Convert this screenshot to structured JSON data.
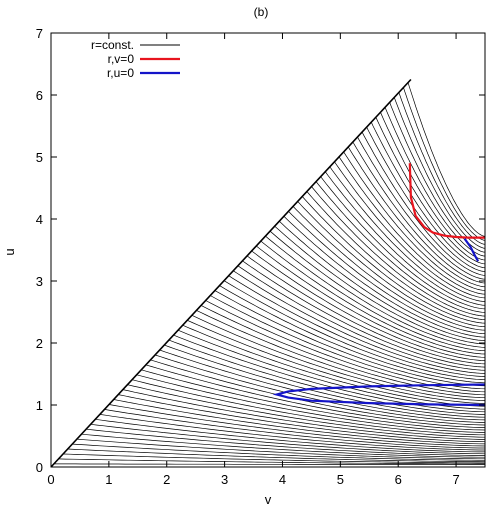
{
  "chart_data": {
    "type": "line",
    "title": "(b)",
    "xlabel": "v",
    "ylabel": "u",
    "xlim": [
      0,
      7.5
    ],
    "ylim": [
      0,
      7
    ],
    "xticks": [
      "0",
      "1",
      "2",
      "3",
      "4",
      "5",
      "6",
      "7"
    ],
    "yticks": [
      "0",
      "1",
      "2",
      "3",
      "4",
      "5",
      "6",
      "7"
    ],
    "grid": false,
    "legend_position": "top-left",
    "legend": [
      {
        "label": "r=const.",
        "color": "#000000"
      },
      {
        "label": "r,v=0",
        "color": "#e8141e"
      },
      {
        "label": "r,u=0",
        "color": "#1414c8"
      }
    ],
    "boundary": {
      "x": [
        0,
        6.22
      ],
      "y": [
        0,
        6.25
      ]
    },
    "apparent_horizon_v": {
      "x": [
        6.2,
        6.22,
        6.3,
        6.45,
        6.6,
        6.8,
        7.0,
        7.2,
        7.5
      ],
      "y": [
        4.9,
        4.35,
        4.05,
        3.87,
        3.78,
        3.73,
        3.71,
        3.7,
        3.7
      ]
    },
    "apparent_horizon_u_upper": {
      "x": [
        7.15,
        7.25,
        7.32,
        7.38
      ],
      "y": [
        3.68,
        3.55,
        3.42,
        3.32
      ]
    },
    "apparent_horizon_u_lower": {
      "x": [
        7.5,
        6.5,
        5.5,
        4.5,
        4.1,
        3.9,
        4.1,
        4.5,
        5.5,
        6.5,
        7.5
      ],
      "y": [
        1.33,
        1.32,
        1.3,
        1.26,
        1.22,
        1.17,
        1.12,
        1.07,
        1.03,
        1.01,
        1.0
      ]
    },
    "r_const_family": {
      "count": 78,
      "u_at_boundary_range": [
        0.05,
        6.2
      ],
      "u_at_right_edge_range": [
        0.04,
        3.72
      ]
    }
  }
}
